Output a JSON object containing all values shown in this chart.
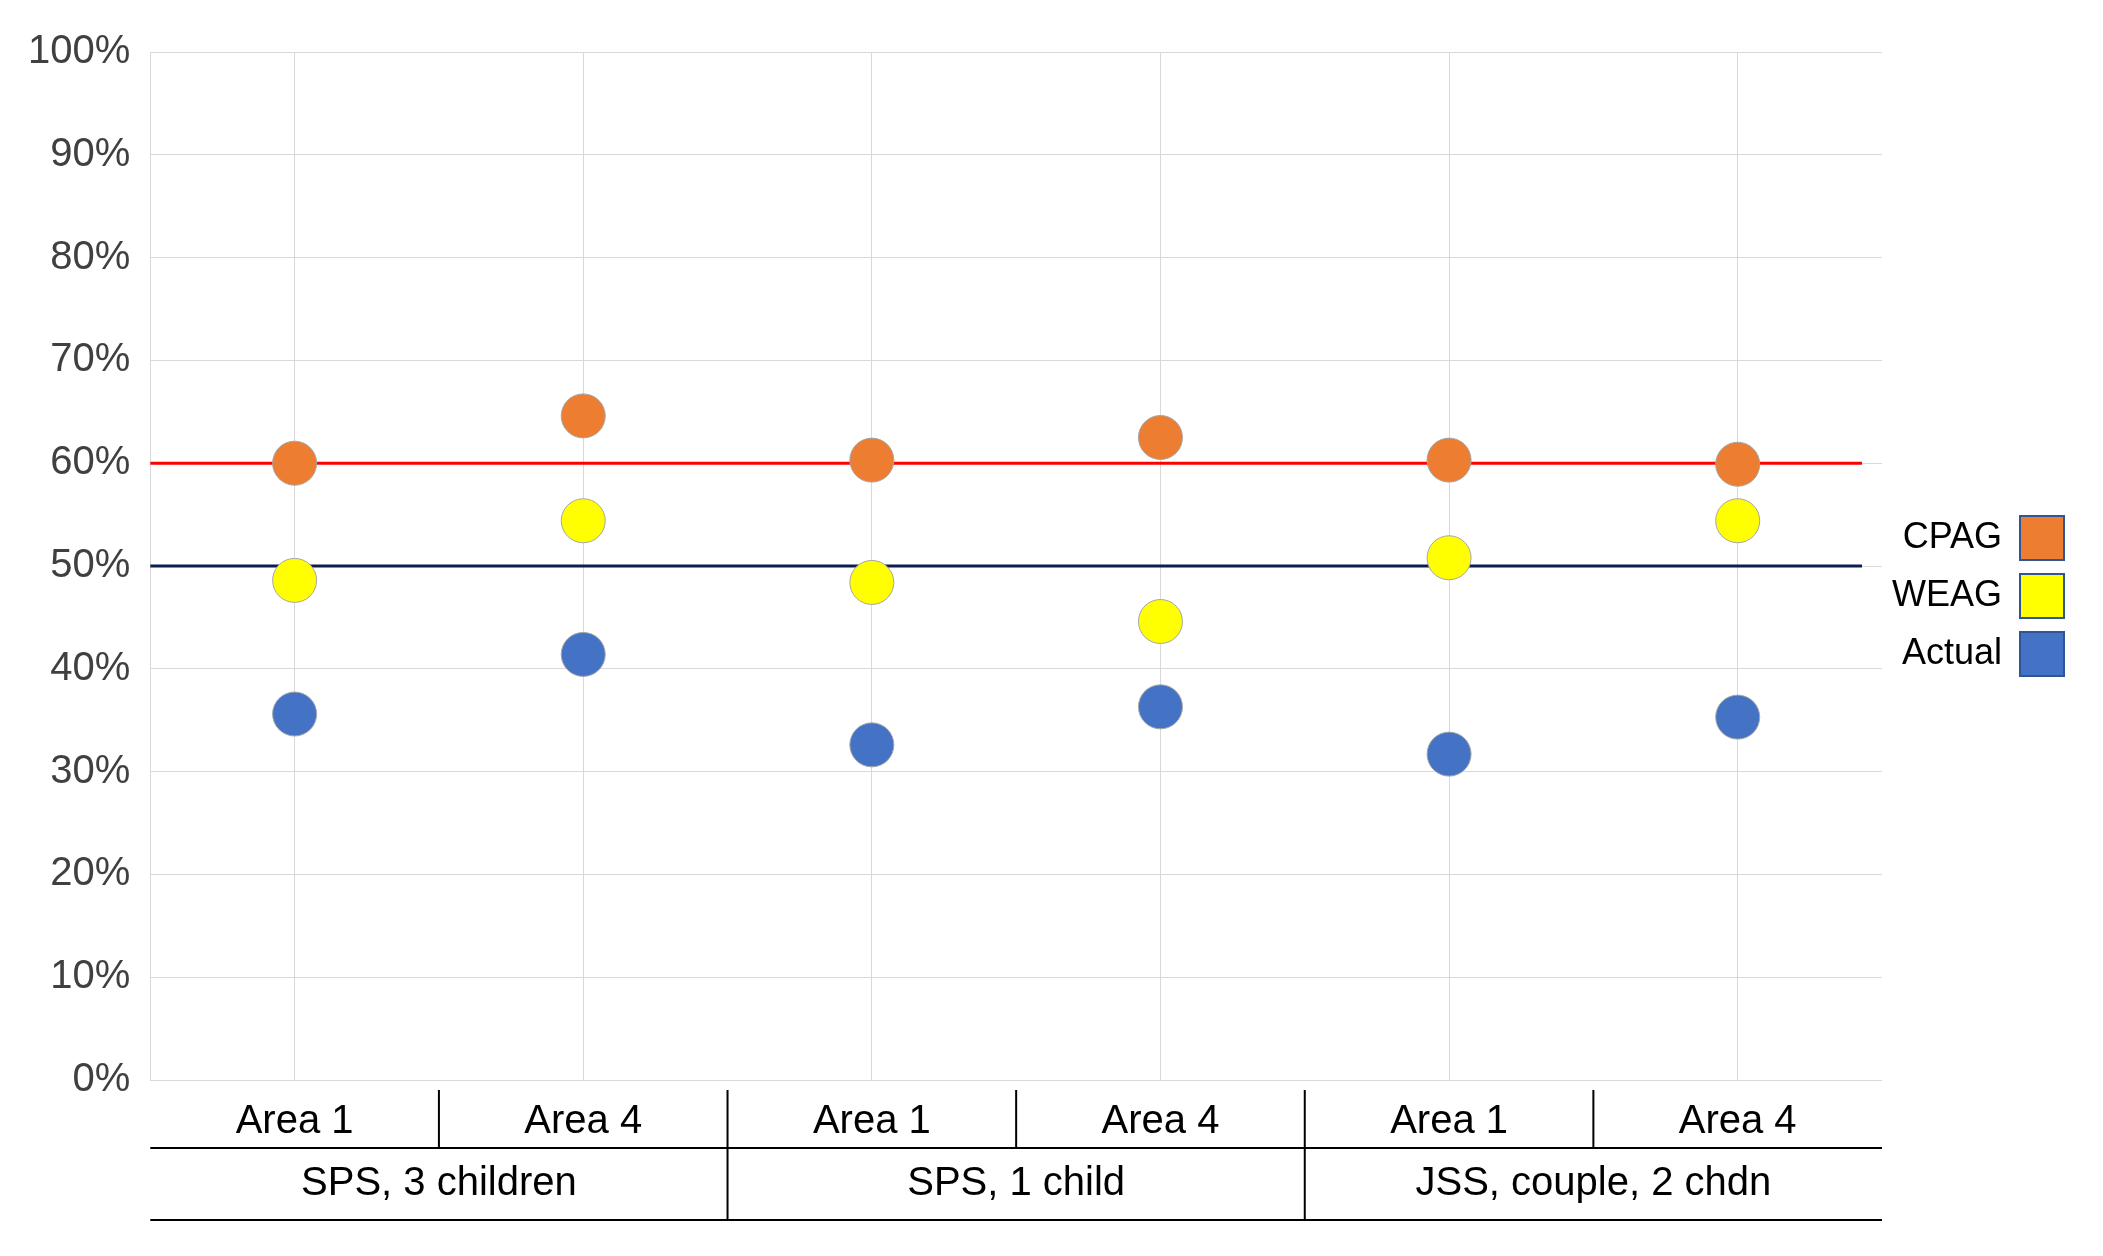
{
  "chart_data": {
    "type": "scatter",
    "categories": [
      "Area 1",
      "Area 4",
      "Area 1",
      "Area 4",
      "Area 1",
      "Area 4"
    ],
    "annotations": [
      "SPS, 3 children",
      "SPS, 1 child",
      "JSS, couple, 2 chdn"
    ],
    "series": [
      {
        "name": "CPAG",
        "color": "#ed7d31",
        "values": [
          60.0,
          64.6,
          60.3,
          62.5,
          60.3,
          59.9
        ]
      },
      {
        "name": "WEAG",
        "color": "#ffff00",
        "values": [
          48.6,
          54.4,
          48.4,
          44.6,
          50.8,
          54.4
        ]
      },
      {
        "name": "Actual",
        "color": "#4472c4",
        "values": [
          35.6,
          41.4,
          32.6,
          36.3,
          31.7,
          35.3
        ]
      }
    ],
    "ylim": [
      0,
      100
    ],
    "yticks": [
      {
        "value": 0,
        "label": "0%"
      },
      {
        "value": 10,
        "label": "10%"
      },
      {
        "value": 20,
        "label": "20%"
      },
      {
        "value": 30,
        "label": "30%"
      },
      {
        "value": 40,
        "label": "40%"
      },
      {
        "value": 50,
        "label": "50%"
      },
      {
        "value": 60,
        "label": "60%"
      },
      {
        "value": 70,
        "label": "70%"
      },
      {
        "value": 80,
        "label": "80%"
      },
      {
        "value": 90,
        "label": "90%"
      },
      {
        "value": 100,
        "label": "100%"
      }
    ],
    "ref_lines": [
      {
        "axis": "y",
        "value": 60,
        "color": "#ff0000"
      },
      {
        "axis": "y",
        "value": 50,
        "color": "#0a1f4f"
      }
    ],
    "grid": true,
    "legend": "right",
    "marker": "circle"
  }
}
